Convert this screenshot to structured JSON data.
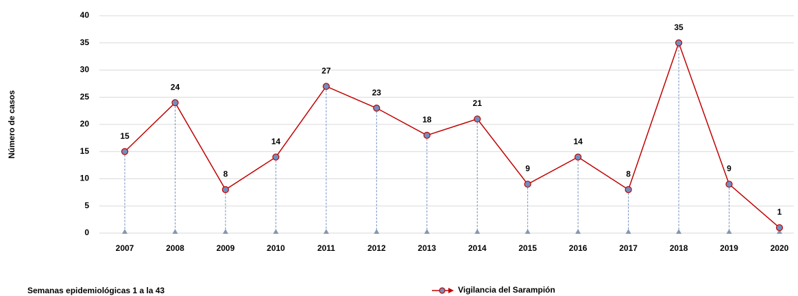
{
  "chart_data": {
    "type": "line",
    "y_label": "Número de casos",
    "x_label": "Semanas epidemiológicas 1 a la 43",
    "categories": [
      "2007",
      "2008",
      "2009",
      "2010",
      "2011",
      "2012",
      "2013",
      "2014",
      "2015",
      "2016",
      "2017",
      "2018",
      "2019",
      "2020"
    ],
    "series": [
      {
        "name": "Vigilancia del Sarampión",
        "color": "#c00000",
        "marker_color": "#6f8fbf",
        "values": [
          15,
          24,
          8,
          14,
          27,
          23,
          18,
          21,
          9,
          14,
          8,
          35,
          9,
          1
        ]
      }
    ],
    "ylim": [
      0,
      40
    ],
    "yticks": [
      0,
      5,
      10,
      15,
      20,
      25,
      30,
      35,
      40
    ],
    "grid": true
  }
}
